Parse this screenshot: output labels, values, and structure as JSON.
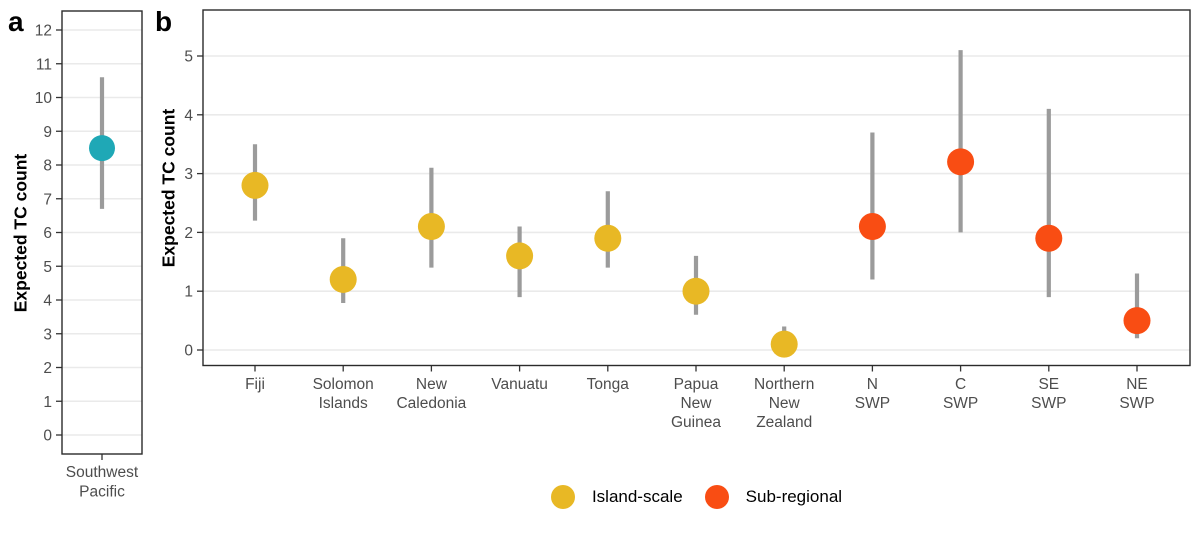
{
  "figure": {
    "panel_a_label": "a",
    "panel_b_label": "b"
  },
  "colors": {
    "background": "#ffffff",
    "gridline": "#EAEAEA",
    "panel_border": "#2B2B2B",
    "tick_mark": "#333333",
    "axis_text": "#4D4D4D",
    "axis_title": "#000000",
    "error_bar": "#9B9B9B"
  },
  "series_colors": {
    "Southwest Pacific": "#1FA8B6",
    "Island-scale": "#E8B825",
    "Sub-regional": "#F94D13"
  },
  "legend": {
    "items": [
      {
        "label": "Island-scale",
        "color": "#E8B825"
      },
      {
        "label": "Sub-regional",
        "color": "#F94D13"
      }
    ]
  },
  "chart_data": [
    {
      "panel": "a",
      "type": "scatter",
      "title": "",
      "ylabel": "Expected TC count",
      "ylim": [
        -0.56,
        12.59
      ],
      "yticks": [
        0,
        1,
        2,
        3,
        4,
        5,
        6,
        7,
        8,
        9,
        10,
        11,
        12
      ],
      "grid": "major-horizontal",
      "points": [
        {
          "category": "Southwest Pacific",
          "label_lines": [
            "Southwest",
            "Pacific"
          ],
          "value": 8.5,
          "lower": 6.7,
          "upper": 10.6,
          "group": "Southwest Pacific"
        }
      ]
    },
    {
      "panel": "b",
      "type": "scatter",
      "title": "",
      "ylabel": "Expected TC count",
      "ylim": [
        -0.26,
        5.78
      ],
      "yticks": [
        0,
        1,
        2,
        3,
        4,
        5
      ],
      "grid": "major-horizontal",
      "legend_position": "bottom",
      "points": [
        {
          "category": "Fiji",
          "label_lines": [
            "Fiji"
          ],
          "value": 2.8,
          "lower": 2.2,
          "upper": 3.5,
          "group": "Island-scale"
        },
        {
          "category": "Solomon Islands",
          "label_lines": [
            "Solomon",
            "Islands"
          ],
          "value": 1.2,
          "lower": 0.8,
          "upper": 1.9,
          "group": "Island-scale"
        },
        {
          "category": "New Caledonia",
          "label_lines": [
            "New",
            "Caledonia"
          ],
          "value": 2.1,
          "lower": 1.4,
          "upper": 3.1,
          "group": "Island-scale"
        },
        {
          "category": "Vanuatu",
          "label_lines": [
            "Vanuatu"
          ],
          "value": 1.6,
          "lower": 0.9,
          "upper": 2.1,
          "group": "Island-scale"
        },
        {
          "category": "Tonga",
          "label_lines": [
            "Tonga"
          ],
          "value": 1.9,
          "lower": 1.4,
          "upper": 2.7,
          "group": "Island-scale"
        },
        {
          "category": "Papua New Guinea",
          "label_lines": [
            "Papua",
            "New",
            "Guinea"
          ],
          "value": 1.0,
          "lower": 0.6,
          "upper": 1.6,
          "group": "Island-scale"
        },
        {
          "category": "Northern New Zealand",
          "label_lines": [
            "Northern",
            "New",
            "Zealand"
          ],
          "value": 0.1,
          "lower": 0.0,
          "upper": 0.4,
          "group": "Island-scale"
        },
        {
          "category": "N SWP",
          "label_lines": [
            "N",
            "SWP"
          ],
          "value": 2.1,
          "lower": 1.2,
          "upper": 3.7,
          "group": "Sub-regional"
        },
        {
          "category": "C SWP",
          "label_lines": [
            "C",
            "SWP"
          ],
          "value": 3.2,
          "lower": 2.0,
          "upper": 5.1,
          "group": "Sub-regional"
        },
        {
          "category": "SE SWP",
          "label_lines": [
            "SE",
            "SWP"
          ],
          "value": 1.9,
          "lower": 0.9,
          "upper": 4.1,
          "group": "Sub-regional"
        },
        {
          "category": "NE SWP",
          "label_lines": [
            "NE",
            "SWP"
          ],
          "value": 0.5,
          "lower": 0.2,
          "upper": 1.3,
          "group": "Sub-regional"
        }
      ]
    }
  ]
}
